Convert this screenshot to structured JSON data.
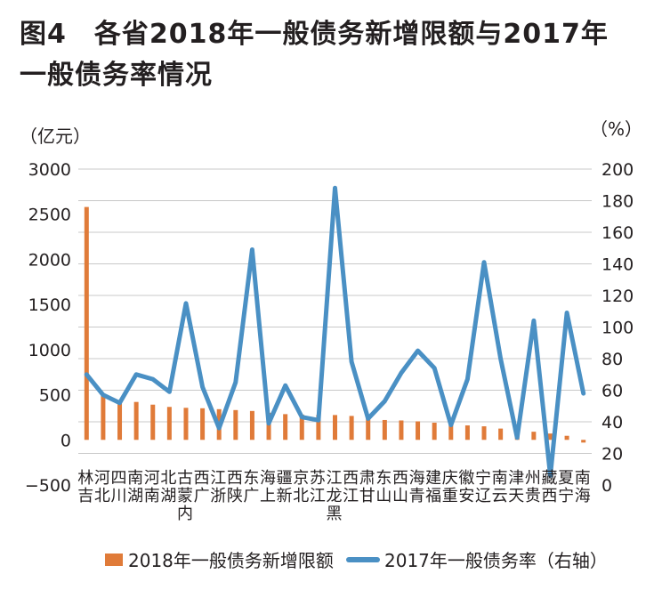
{
  "title_line1": "图4　各省2018年一般债务新增限额与2017年",
  "title_line2": "一般债务率情况",
  "chart_data": {
    "type": "bar+line",
    "title": "图4　各省2018年一般债务新增限额与2017年一般债务率情况",
    "left_axis_unit": "（亿元）",
    "right_axis_unit": "（%）",
    "left_ylim": [
      -500,
      3000
    ],
    "left_ticks": [
      "3000",
      "2500",
      "2000",
      "1500",
      "1000",
      "500",
      "0",
      "−500"
    ],
    "right_ylim": [
      0,
      200
    ],
    "right_ticks": [
      "200",
      "180",
      "160",
      "140",
      "120",
      "100",
      "80",
      "60",
      "40",
      "20",
      "0"
    ],
    "grid": true,
    "legend_position": "bottom",
    "categories": [
      "吉林",
      "河北",
      "四川",
      "湖南",
      "河南",
      "湖北",
      "内蒙古",
      "广西",
      "浙江",
      "陕西",
      "广东",
      "上海",
      "新疆",
      "北京",
      "江苏",
      "黑龙江",
      "江西",
      "甘肃",
      "山东",
      "山西",
      "青海",
      "福建",
      "重庆",
      "安徽",
      "辽宁",
      "云南",
      "天津",
      "贵州",
      "西藏",
      "宁夏",
      "海南"
    ],
    "category_label_rows": [
      [
        "林",
        "河",
        "四",
        "南",
        "河",
        "北",
        "古",
        "西",
        "江",
        "西",
        "东",
        "海",
        "疆",
        "京",
        "苏",
        "江",
        "西",
        "肃",
        "东",
        "西",
        "海",
        "建",
        "庆",
        "徽",
        "宁",
        "南",
        "津",
        "州",
        "藏",
        "夏",
        "南"
      ],
      [
        "吉",
        "北",
        "川",
        "湖",
        "南",
        "湖",
        "蒙",
        "广",
        "浙",
        "陕",
        "广",
        "上",
        "新",
        "北",
        "江",
        "龙",
        "江",
        "甘",
        "山",
        "山",
        "青",
        "福",
        "重",
        "安",
        "辽",
        "云",
        "天",
        "贵",
        "西",
        "宁",
        "海"
      ],
      [
        "",
        "",
        "",
        "",
        "",
        "",
        "内",
        "",
        "",
        "",
        "",
        "",
        "",
        "",
        "",
        "黑",
        "",
        "",
        "",
        "",
        "",
        "",
        "",
        "",
        "",
        "",
        "",
        "",
        "",
        "",
        ""
      ]
    ],
    "series": [
      {
        "name": "2018年一般债务新增限额",
        "type": "bar",
        "axis": "left",
        "color": "#e07b39",
        "values": [
          2580,
          510,
          440,
          420,
          390,
          365,
          355,
          350,
          340,
          330,
          320,
          300,
          285,
          280,
          275,
          275,
          265,
          240,
          220,
          215,
          205,
          190,
          180,
          160,
          150,
          125,
          115,
          90,
          70,
          45,
          -30
        ]
      },
      {
        "name": "2017年一般债务率（右轴）",
        "type": "line",
        "axis": "right",
        "color": "#4a90c4",
        "values": [
          70,
          57,
          52,
          70,
          67,
          59,
          115,
          62,
          36,
          65,
          149,
          39,
          63,
          43,
          41,
          188,
          78,
          42,
          53,
          71,
          85,
          74,
          38,
          67,
          141,
          80,
          30,
          104,
          6,
          109,
          58
        ]
      }
    ],
    "legend": [
      {
        "label": "2018年一般债务新增限额",
        "shape": "bar",
        "color": "#e07b39"
      },
      {
        "label": "2017年一般债务率（右轴）",
        "shape": "line",
        "color": "#4a90c4"
      }
    ]
  }
}
